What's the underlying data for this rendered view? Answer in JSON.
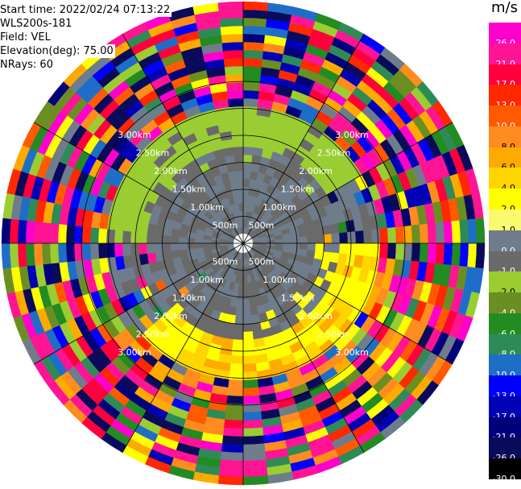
{
  "info": {
    "start_time": "Start time: 2022/02/24 07:13:22",
    "instrument": "WLS200s-181",
    "field": "Field: VEL",
    "elevation": "Elevation(deg): 75.00",
    "nrays": "NRays: 60"
  },
  "colorbar": {
    "unit": "m/s",
    "ticks": [
      "26.0",
      "21.0",
      "17.0",
      "13.0",
      "10.0",
      "8.0",
      "6.0",
      "4.0",
      "2.0",
      "1.0",
      "0.0",
      "-1.0",
      "-2.0",
      "-4.0",
      "-6.0",
      "-8.0",
      "-10.0",
      "-13.0",
      "-17.0",
      "-21.0",
      "-26.0",
      "-30.0"
    ],
    "colors": [
      "#ff00cc",
      "#ff1493",
      "#ff003c",
      "#ff2800",
      "#ff5a00",
      "#ff8c1e",
      "#ffaa00",
      "#ffd500",
      "#ffff00",
      "#fafa6e",
      "#6e7c8c",
      "#6a6a6a",
      "#9acd32",
      "#6b8e23",
      "#228b22",
      "#2e8b57",
      "#1e6ec8",
      "#0000ff",
      "#0000b4",
      "#00007a",
      "#0a0a5a",
      "#000000"
    ]
  },
  "chart_data": {
    "type": "heatmap",
    "projection": "polar PPI",
    "field": "VEL",
    "units": "m/s",
    "nrays": 60,
    "elevation_deg": 75.0,
    "range_ring_labels_km": [
      "500m",
      "1.00km",
      "1.50km",
      "2.00km",
      "2.50km",
      "3.00km"
    ],
    "ring_label_text": {
      "r500": "500m",
      "r1000": "1.00km",
      "r1500": "1.50km",
      "r2000": "2.00km",
      "r2500": "2.50km",
      "r3000": "3.00km"
    },
    "colorbar_range": [
      -30.0,
      26.0
    ],
    "velocity_regions": [
      {
        "range_km": [
          0.0,
          1.75
        ],
        "azimuth_deg": [
          0,
          360
        ],
        "value": -1.0,
        "approx": "near-zero grey"
      },
      {
        "range_km": [
          1.75,
          2.5
        ],
        "azimuth_deg": [
          270,
          60
        ],
        "value": -2.0,
        "approx": "light green band to the north"
      },
      {
        "range_km": [
          1.5,
          2.6
        ],
        "azimuth_deg": [
          90,
          260
        ],
        "value": 2.0,
        "approx": "yellow band to the south-east"
      },
      {
        "range_km": [
          2.6,
          3.6
        ],
        "azimuth_deg": [
          0,
          360
        ],
        "value": null,
        "approx": "noisy mixed velocities"
      }
    ]
  }
}
